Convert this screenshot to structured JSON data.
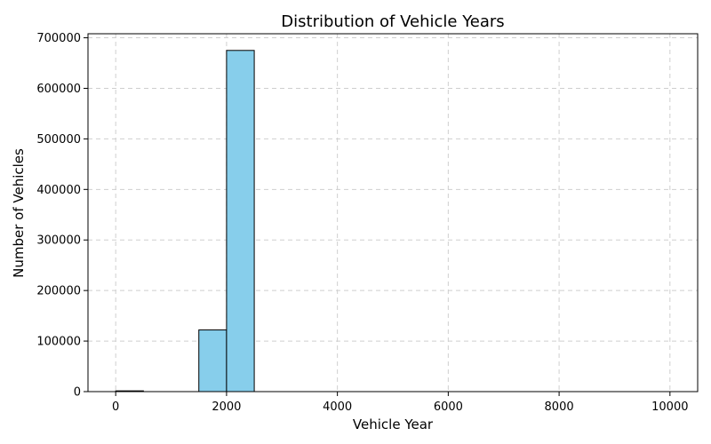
{
  "chart_data": {
    "type": "bar",
    "title": "Distribution of Vehicle Years",
    "xlabel": "Vehicle Year",
    "ylabel": "Number of Vehicles",
    "bins": [
      {
        "start": 0,
        "end": 500,
        "count": 1500
      },
      {
        "start": 1500,
        "end": 2000,
        "count": 122000
      },
      {
        "start": 2000,
        "end": 2500,
        "count": 675000
      }
    ],
    "xlim": [
      -500,
      10500
    ],
    "ylim": [
      0,
      708000
    ],
    "xticks": [
      0,
      2000,
      4000,
      6000,
      8000,
      10000
    ],
    "yticks": [
      0,
      100000,
      200000,
      300000,
      400000,
      500000,
      600000,
      700000
    ],
    "grid": true,
    "bar_color": "#87ceeb",
    "edge_color": "#000000",
    "grid_color": "#cfcfcf"
  }
}
